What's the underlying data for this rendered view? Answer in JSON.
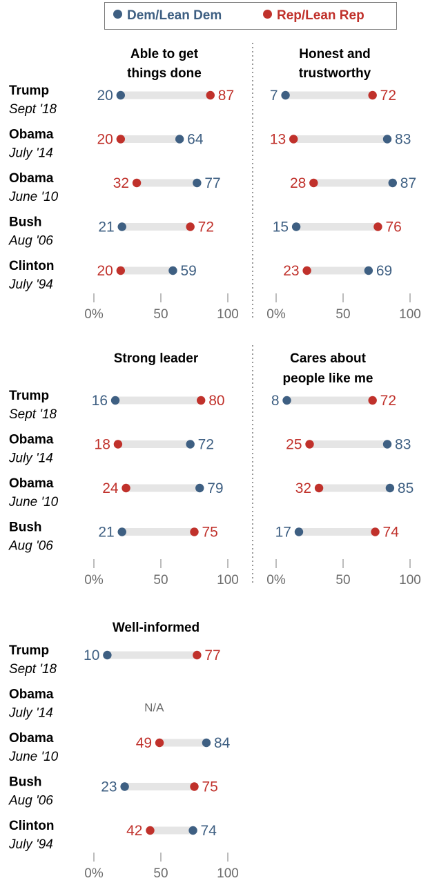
{
  "colors": {
    "dem": "#3e5f82",
    "rep": "#c0312b",
    "bar": "#e5e5e5",
    "axis": "#a6a6a6",
    "text": "#000000",
    "tick": "#6b6b6b",
    "na": "#6b6b6b"
  },
  "legend": [
    {
      "label": "Dem/Lean Dem",
      "key": "dem"
    },
    {
      "label": "Rep/Lean Rep",
      "key": "rep"
    }
  ],
  "chart_data": [
    {
      "type": "dot",
      "title": "Able to get things done",
      "x_ticks": [
        "0%",
        "50",
        "100"
      ],
      "xlim": [
        0,
        100
      ],
      "rows": [
        {
          "name": "Trump",
          "date": "Sept '18",
          "dem": 20,
          "rep": 87
        },
        {
          "name": "Obama",
          "date": "July '14",
          "dem": 64,
          "rep": 20
        },
        {
          "name": "Obama",
          "date": "June '10",
          "dem": 77,
          "rep": 32
        },
        {
          "name": "Bush",
          "date": "Aug '06",
          "dem": 21,
          "rep": 72
        },
        {
          "name": "Clinton",
          "date": "July '94",
          "dem": 59,
          "rep": 20
        }
      ]
    },
    {
      "type": "dot",
      "title": "Honest and trustworthy",
      "x_ticks": [
        "0%",
        "50",
        "100"
      ],
      "xlim": [
        0,
        100
      ],
      "rows": [
        {
          "name": "Trump",
          "date": "Sept '18",
          "dem": 7,
          "rep": 72
        },
        {
          "name": "Obama",
          "date": "July '14",
          "dem": 83,
          "rep": 13
        },
        {
          "name": "Obama",
          "date": "June '10",
          "dem": 87,
          "rep": 28
        },
        {
          "name": "Bush",
          "date": "Aug '06",
          "dem": 15,
          "rep": 76
        },
        {
          "name": "Clinton",
          "date": "July '94",
          "dem": 69,
          "rep": 23
        }
      ]
    },
    {
      "type": "dot",
      "title": "Strong leader",
      "x_ticks": [
        "0%",
        "50",
        "100"
      ],
      "xlim": [
        0,
        100
      ],
      "rows": [
        {
          "name": "Trump",
          "date": "Sept '18",
          "dem": 16,
          "rep": 80
        },
        {
          "name": "Obama",
          "date": "July '14",
          "dem": 72,
          "rep": 18
        },
        {
          "name": "Obama",
          "date": "June '10",
          "dem": 79,
          "rep": 24
        },
        {
          "name": "Bush",
          "date": "Aug '06",
          "dem": 21,
          "rep": 75
        }
      ]
    },
    {
      "type": "dot",
      "title": "Cares about people like me",
      "x_ticks": [
        "0%",
        "50",
        "100"
      ],
      "xlim": [
        0,
        100
      ],
      "rows": [
        {
          "name": "Trump",
          "date": "Sept '18",
          "dem": 8,
          "rep": 72
        },
        {
          "name": "Obama",
          "date": "July '14",
          "dem": 83,
          "rep": 25
        },
        {
          "name": "Obama",
          "date": "June '10",
          "dem": 85,
          "rep": 32
        },
        {
          "name": "Bush",
          "date": "Aug '06",
          "dem": 17,
          "rep": 74
        }
      ]
    },
    {
      "type": "dot",
      "title": "Well-informed",
      "x_ticks": [
        "0%",
        "50",
        "100"
      ],
      "xlim": [
        0,
        100
      ],
      "rows": [
        {
          "name": "Trump",
          "date": "Sept '18",
          "dem": 10,
          "rep": 77
        },
        {
          "name": "Obama",
          "date": "July '14",
          "dem": null,
          "rep": null,
          "na": "N/A"
        },
        {
          "name": "Obama",
          "date": "June '10",
          "dem": 84,
          "rep": 49
        },
        {
          "name": "Bush",
          "date": "Aug '06",
          "dem": 23,
          "rep": 75
        },
        {
          "name": "Clinton",
          "date": "July '94",
          "dem": 74,
          "rep": 42
        }
      ]
    }
  ]
}
